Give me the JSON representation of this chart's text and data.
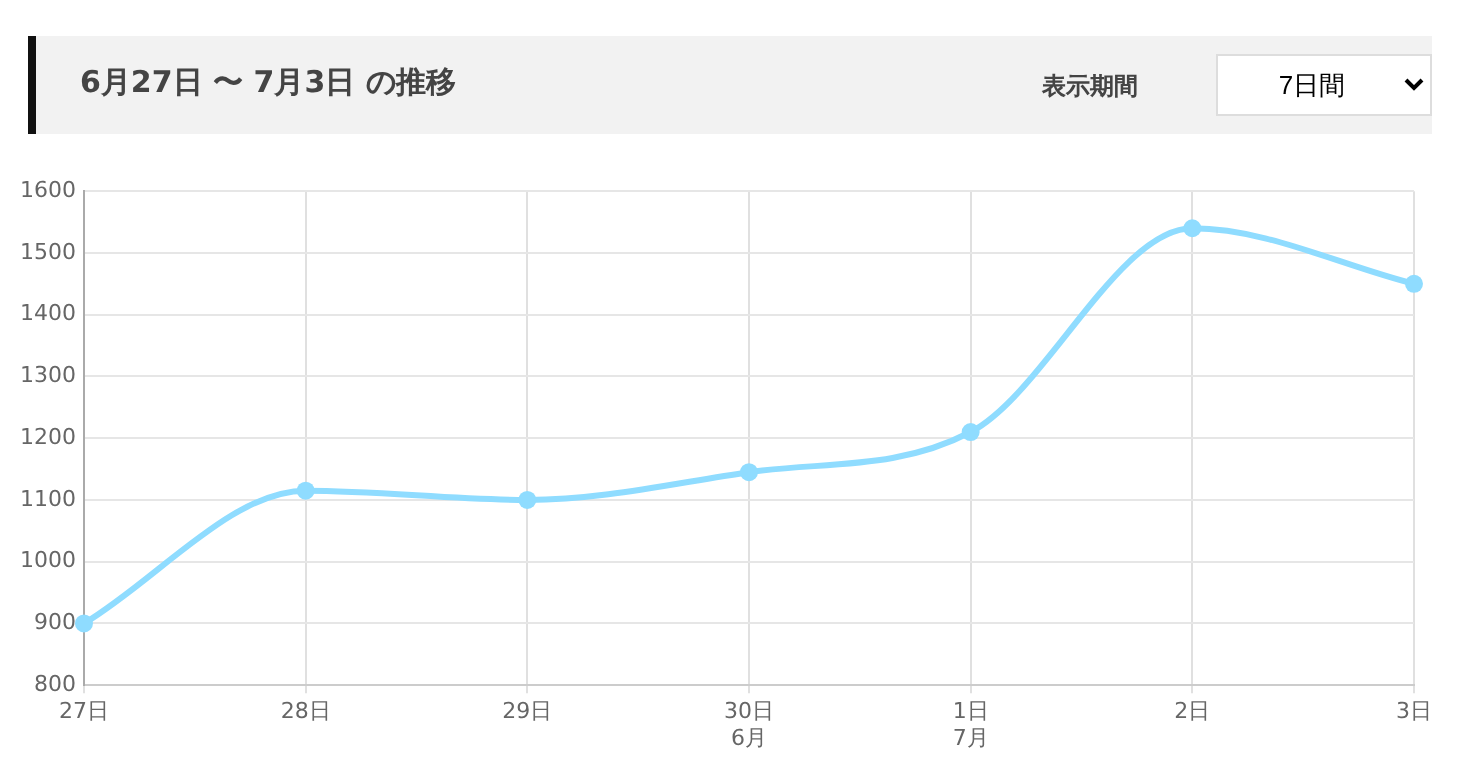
{
  "chart_data": {
    "type": "line",
    "title": "6月27日 〜 7月3日 の推移",
    "annotations": [
      "表示期間",
      "7日間"
    ],
    "categories": [
      "27日",
      "28日",
      "29日",
      "30日\n6月",
      "1日\n7月",
      "2日",
      "3日"
    ],
    "series": [
      {
        "color": "#8fdcff",
        "values": [
          900,
          1115,
          1100,
          1145,
          1210,
          1540,
          1450
        ]
      }
    ],
    "ylim": [
      800,
      1600
    ],
    "yticks": [
      800,
      900,
      1000,
      1100,
      1200,
      1300,
      1400,
      1500,
      1600
    ],
    "grid": true,
    "legend": false,
    "marker": "circle",
    "line_style": "solid"
  }
}
